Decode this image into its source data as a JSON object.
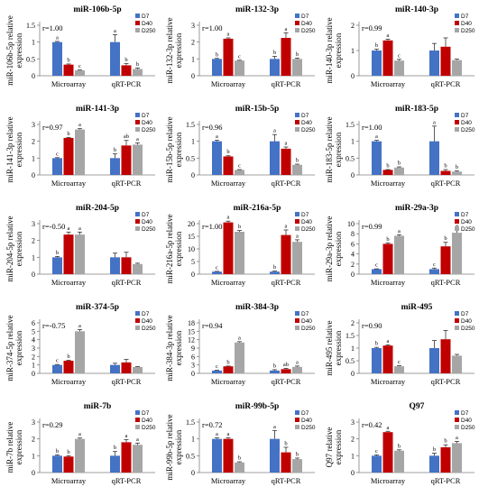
{
  "colors": {
    "D7": "#4472C4",
    "D40": "#C00000",
    "D250": "#A6A6A6"
  },
  "chart_data": [
    {
      "type": "bar",
      "title": "miR-106b-5p",
      "ylabel": "miR-106b-5p relative expression",
      "r_label": "r=1.00",
      "categories": [
        "Microarray",
        "qRT-PCR"
      ],
      "ylim": [
        0,
        1.5
      ],
      "yticks": [
        "0",
        "0.5",
        "1",
        "1.5"
      ],
      "series": [
        {
          "name": "D7",
          "values": [
            1.0,
            1.0
          ],
          "errors": [
            0.02,
            0.22
          ],
          "letters": [
            "a",
            "a"
          ]
        },
        {
          "name": "D40",
          "values": [
            0.33,
            0.31
          ],
          "errors": [
            0.02,
            0.05
          ],
          "letters": [
            "b",
            "b"
          ]
        },
        {
          "name": "D250",
          "values": [
            0.16,
            0.2
          ],
          "errors": [
            0.01,
            0.03
          ],
          "letters": [
            "c",
            "b"
          ]
        }
      ]
    },
    {
      "type": "bar",
      "title": "miR-132-3p",
      "ylabel": "miR-132-3p relative expression",
      "r_label": "r=1.00",
      "categories": [
        "Microarray",
        "qRT-PCR"
      ],
      "ylim": [
        0,
        3
      ],
      "yticks": [
        "0",
        "1",
        "2",
        "3"
      ],
      "series": [
        {
          "name": "D7",
          "values": [
            1.0,
            1.0
          ],
          "errors": [
            0.03,
            0.15
          ],
          "letters": [
            "b",
            "b"
          ]
        },
        {
          "name": "D40",
          "values": [
            2.2,
            2.25
          ],
          "errors": [
            0.05,
            0.3
          ],
          "letters": [
            "a",
            "a"
          ]
        },
        {
          "name": "D250",
          "values": [
            0.9,
            1.0
          ],
          "errors": [
            0.02,
            0.05
          ],
          "letters": [
            "c",
            "b"
          ]
        }
      ]
    },
    {
      "type": "bar",
      "title": "miR-140-3p",
      "ylabel": "miR-140-3p relative expression",
      "r_label": "r=0.99",
      "categories": [
        "Microarray",
        "qRT-PCR"
      ],
      "ylim": [
        0,
        2
      ],
      "yticks": [
        "0",
        "1",
        "2"
      ],
      "series": [
        {
          "name": "D7",
          "values": [
            1.0,
            1.0
          ],
          "errors": [
            0.05,
            0.28
          ],
          "letters": [
            "b",
            ""
          ]
        },
        {
          "name": "D40",
          "values": [
            1.4,
            1.15
          ],
          "errors": [
            0.05,
            0.35
          ],
          "letters": [
            "a",
            ""
          ]
        },
        {
          "name": "D250",
          "values": [
            0.6,
            0.62
          ],
          "errors": [
            0.05,
            0.04
          ],
          "letters": [
            "c",
            ""
          ]
        }
      ]
    },
    {
      "type": "bar",
      "title": "miR-141-3p",
      "ylabel": "miR-141-3p relative expression",
      "r_label": "r=0.97",
      "categories": [
        "Microarray",
        "qRT-PCR"
      ],
      "ylim": [
        0,
        3
      ],
      "yticks": [
        "0",
        "1",
        "2",
        "3"
      ],
      "series": [
        {
          "name": "D7",
          "values": [
            1.0,
            1.0
          ],
          "errors": [
            0.03,
            0.25
          ],
          "letters": [
            "c",
            "b"
          ]
        },
        {
          "name": "D40",
          "values": [
            2.2,
            1.75
          ],
          "errors": [
            0.03,
            0.3
          ],
          "letters": [
            "b",
            "ab"
          ]
        },
        {
          "name": "D250",
          "values": [
            2.7,
            1.8
          ],
          "errors": [
            0.05,
            0.1
          ],
          "letters": [
            "a",
            "a"
          ]
        }
      ]
    },
    {
      "type": "bar",
      "title": "miR-15b-5p",
      "ylabel": "miR-15b-5p relative expression",
      "r_label": "r=0.96",
      "categories": [
        "Microarray",
        "qRT-PCR"
      ],
      "ylim": [
        0,
        1.5
      ],
      "yticks": [
        "0",
        "0.5",
        "1",
        "1.5"
      ],
      "series": [
        {
          "name": "D7",
          "values": [
            1.0,
            1.0
          ],
          "errors": [
            0.03,
            0.2
          ],
          "letters": [
            "a",
            "a"
          ]
        },
        {
          "name": "D40",
          "values": [
            0.55,
            0.78
          ],
          "errors": [
            0.02,
            0.05
          ],
          "letters": [
            "b",
            "a"
          ]
        },
        {
          "name": "D250",
          "values": [
            0.15,
            0.3
          ],
          "errors": [
            0.01,
            0.02
          ],
          "letters": [
            "c",
            "b"
          ]
        }
      ]
    },
    {
      "type": "bar",
      "title": "miR-183-5p",
      "ylabel": "miR-183-5p relative expression",
      "r_label": "r=1.00",
      "categories": [
        "Microarray",
        "qRT-PCR"
      ],
      "ylim": [
        0,
        1.5
      ],
      "yticks": [
        "0",
        "0.5",
        "1",
        "1.5"
      ],
      "series": [
        {
          "name": "D7",
          "values": [
            1.0,
            1.0
          ],
          "errors": [
            0.03,
            0.45
          ],
          "letters": [
            "a",
            "a"
          ]
        },
        {
          "name": "D40",
          "values": [
            0.15,
            0.12
          ],
          "errors": [
            0.01,
            0.04
          ],
          "letters": [
            "b",
            "b"
          ]
        },
        {
          "name": "D250",
          "values": [
            0.22,
            0.1
          ],
          "errors": [
            0.02,
            0.02
          ],
          "letters": [
            "b",
            "b"
          ]
        }
      ]
    },
    {
      "type": "bar",
      "title": "miR-204-5p",
      "ylabel": "miR-204-5p relative expression",
      "r_label": "r=-0.50",
      "categories": [
        "Microarray",
        "qRT-PCR"
      ],
      "ylim": [
        0,
        3
      ],
      "yticks": [
        "0",
        "1",
        "2",
        "3"
      ],
      "series": [
        {
          "name": "D7",
          "values": [
            1.0,
            1.0
          ],
          "errors": [
            0.05,
            0.25
          ],
          "letters": [
            "b",
            ""
          ]
        },
        {
          "name": "D40",
          "values": [
            2.35,
            1.0
          ],
          "errors": [
            0.15,
            0.3
          ],
          "letters": [
            "a",
            ""
          ]
        },
        {
          "name": "D250",
          "values": [
            2.35,
            0.6
          ],
          "errors": [
            0.15,
            0.05
          ],
          "letters": [
            "a",
            ""
          ]
        }
      ]
    },
    {
      "type": "bar",
      "title": "miR-216a-5p",
      "ylabel": "miR-216a-5p relative expression",
      "r_label": "r=1.00",
      "categories": [
        "Microarray",
        "qRT-PCR"
      ],
      "ylim": [
        0,
        20
      ],
      "yticks": [
        "0",
        "5",
        "10",
        "15",
        "20"
      ],
      "series": [
        {
          "name": "D7",
          "values": [
            1.0,
            1.0
          ],
          "errors": [
            0.1,
            0.2
          ],
          "letters": [
            "c",
            "b"
          ]
        },
        {
          "name": "D40",
          "values": [
            20.5,
            15.5
          ],
          "errors": [
            0.5,
            2.0
          ],
          "letters": [
            "a",
            "a"
          ]
        },
        {
          "name": "D250",
          "values": [
            16.8,
            12.8
          ],
          "errors": [
            0.5,
            0.8
          ],
          "letters": [
            "b",
            "a"
          ]
        }
      ]
    },
    {
      "type": "bar",
      "title": "miR-29a-3p",
      "ylabel": "miR-29a-3p relative expression",
      "r_label": "r=0.99",
      "categories": [
        "Microarray",
        "qRT-PCR"
      ],
      "ylim": [
        0,
        10
      ],
      "yticks": [
        "0",
        "2",
        "4",
        "6",
        "8",
        "10"
      ],
      "series": [
        {
          "name": "D7",
          "values": [
            1.0,
            1.0
          ],
          "errors": [
            0.05,
            0.2
          ],
          "letters": [
            "c",
            "c"
          ]
        },
        {
          "name": "D40",
          "values": [
            6.0,
            5.5
          ],
          "errors": [
            0.2,
            0.8
          ],
          "letters": [
            "b",
            "b"
          ]
        },
        {
          "name": "D250",
          "values": [
            7.6,
            8.2
          ],
          "errors": [
            0.2,
            0.6
          ],
          "letters": [
            "a",
            "a"
          ]
        }
      ]
    },
    {
      "type": "bar",
      "title": "miR-374-5p",
      "ylabel": "miR-374-5p relative expression",
      "r_label": "r=-0.75",
      "categories": [
        "Microarray",
        "qRT-PCR"
      ],
      "ylim": [
        0,
        6
      ],
      "yticks": [
        "0",
        "1",
        "2",
        "3",
        "4",
        "5",
        "6"
      ],
      "series": [
        {
          "name": "D7",
          "values": [
            1.0,
            1.0
          ],
          "errors": [
            0.05,
            0.2
          ],
          "letters": [
            "c",
            ""
          ]
        },
        {
          "name": "D40",
          "values": [
            1.5,
            1.3
          ],
          "errors": [
            0.05,
            0.35
          ],
          "letters": [
            "b",
            ""
          ]
        },
        {
          "name": "D250",
          "values": [
            5.0,
            0.75
          ],
          "errors": [
            0.2,
            0.05
          ],
          "letters": [
            "a",
            ""
          ]
        }
      ]
    },
    {
      "type": "bar",
      "title": "miR-384-3p",
      "ylabel": "miR-384-3p relative expression",
      "r_label": "r=0.94",
      "categories": [
        "Microarray",
        "qRT-PCR"
      ],
      "ylim": [
        0,
        18
      ],
      "yticks": [
        "0",
        "3",
        "6",
        "9",
        "12",
        "15",
        "18"
      ],
      "series": [
        {
          "name": "D7",
          "values": [
            1.0,
            1.0
          ],
          "errors": [
            0.1,
            0.3
          ],
          "letters": [
            "c",
            "b"
          ]
        },
        {
          "name": "D40",
          "values": [
            2.5,
            1.5
          ],
          "errors": [
            0.1,
            0.3
          ],
          "letters": [
            "b",
            "ab"
          ]
        },
        {
          "name": "D250",
          "values": [
            11.0,
            2.3
          ],
          "errors": [
            0.3,
            0.3
          ],
          "letters": [
            "a",
            "a"
          ]
        }
      ]
    },
    {
      "type": "bar",
      "title": "miR-495",
      "ylabel": "miR-495 relative expression",
      "r_label": "r=0.90",
      "categories": [
        "Microarray",
        "qRT-PCR"
      ],
      "ylim": [
        0,
        2
      ],
      "yticks": [
        "0",
        "0.5",
        "1",
        "1.5",
        "2"
      ],
      "series": [
        {
          "name": "D7",
          "values": [
            1.0,
            1.0
          ],
          "errors": [
            0.03,
            0.3
          ],
          "letters": [
            "b",
            ""
          ]
        },
        {
          "name": "D40",
          "values": [
            1.1,
            1.35
          ],
          "errors": [
            0.03,
            0.35
          ],
          "letters": [
            "a",
            ""
          ]
        },
        {
          "name": "D250",
          "values": [
            0.28,
            0.7
          ],
          "errors": [
            0.02,
            0.05
          ],
          "letters": [
            "c",
            ""
          ]
        }
      ]
    },
    {
      "type": "bar",
      "title": "miR-7b",
      "ylabel": "miR-7b relative expression",
      "r_label": "r=0.29",
      "categories": [
        "Microarray",
        "qRT-PCR"
      ],
      "ylim": [
        0,
        3
      ],
      "yticks": [
        "0",
        "1",
        "2",
        "3"
      ],
      "series": [
        {
          "name": "D7",
          "values": [
            1.0,
            1.0
          ],
          "errors": [
            0.05,
            0.25
          ],
          "letters": [
            "b",
            "b"
          ]
        },
        {
          "name": "D40",
          "values": [
            0.95,
            1.8
          ],
          "errors": [
            0.05,
            0.15
          ],
          "letters": [
            "b",
            "a"
          ]
        },
        {
          "name": "D250",
          "values": [
            2.0,
            1.65
          ],
          "errors": [
            0.05,
            0.1
          ],
          "letters": [
            "a",
            "a"
          ]
        }
      ]
    },
    {
      "type": "bar",
      "title": "miR-99b-5p",
      "ylabel": "miR-99b-5p relative expression",
      "r_label": "r=0.72",
      "categories": [
        "Microarray",
        "qRT-PCR"
      ],
      "ylim": [
        0,
        1.5
      ],
      "yticks": [
        "0",
        "0.5",
        "1",
        "1.5"
      ],
      "series": [
        {
          "name": "D7",
          "values": [
            1.0,
            1.0
          ],
          "errors": [
            0.03,
            0.25
          ],
          "letters": [
            "a",
            "a"
          ]
        },
        {
          "name": "D40",
          "values": [
            1.0,
            0.6
          ],
          "errors": [
            0.03,
            0.15
          ],
          "letters": [
            "a",
            "b"
          ]
        },
        {
          "name": "D250",
          "values": [
            0.3,
            0.4
          ],
          "errors": [
            0.02,
            0.03
          ],
          "letters": [
            "b",
            "b"
          ]
        }
      ]
    },
    {
      "type": "bar",
      "title": "Q97",
      "ylabel": "Q97 relative expression",
      "r_label": "r=0.42",
      "categories": [
        "Microarray",
        "qRT-PCR"
      ],
      "ylim": [
        0,
        3
      ],
      "yticks": [
        "0",
        "1",
        "2",
        "3"
      ],
      "series": [
        {
          "name": "D7",
          "values": [
            1.0,
            1.0
          ],
          "errors": [
            0.05,
            0.15
          ],
          "letters": [
            "c",
            "b"
          ]
        },
        {
          "name": "D40",
          "values": [
            2.4,
            1.5
          ],
          "errors": [
            0.05,
            0.15
          ],
          "letters": [
            "a",
            "b"
          ]
        },
        {
          "name": "D250",
          "values": [
            1.3,
            1.75
          ],
          "errors": [
            0.05,
            0.1
          ],
          "letters": [
            "b",
            "a"
          ]
        }
      ]
    }
  ]
}
